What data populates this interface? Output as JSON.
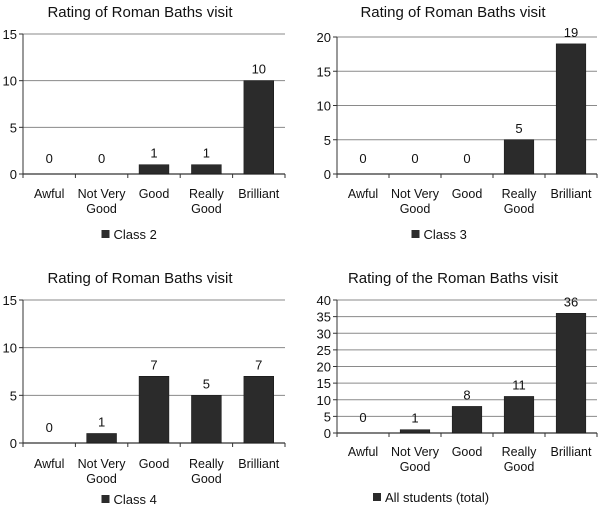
{
  "colors": {
    "bar": "#2b2b2b",
    "grid": "#8a8a8a",
    "axis": "#333333"
  },
  "chart_data": [
    {
      "type": "bar",
      "title": "Rating of Roman Baths visit",
      "categories": [
        "Awful",
        "Not Very Good",
        "Good",
        "Really Good",
        "Brilliant"
      ],
      "category_lines": [
        [
          "Awful"
        ],
        [
          "Not Very",
          "Good"
        ],
        [
          "Good"
        ],
        [
          "Really",
          "Good"
        ],
        [
          "Brilliant"
        ]
      ],
      "series": [
        {
          "name": "Class 2",
          "values": [
            0,
            0,
            1,
            1,
            10
          ]
        }
      ],
      "ylim": [
        0,
        15
      ],
      "yticks": [
        0,
        5,
        10,
        15
      ],
      "grid": true,
      "legend": "bottom",
      "xlabel": "",
      "ylabel": ""
    },
    {
      "type": "bar",
      "title": "Rating of Roman Baths visit",
      "categories": [
        "Awful",
        "Not Very Good",
        "Good",
        "Really Good",
        "Brilliant"
      ],
      "category_lines": [
        [
          "Awful"
        ],
        [
          "Not Very",
          "Good"
        ],
        [
          "Good"
        ],
        [
          "Really",
          "Good"
        ],
        [
          "Brilliant"
        ]
      ],
      "series": [
        {
          "name": "Class 3",
          "values": [
            0,
            0,
            0,
            5,
            19
          ]
        }
      ],
      "ylim": [
        0,
        20
      ],
      "yticks": [
        0,
        5,
        10,
        15,
        20
      ],
      "grid": true,
      "legend": "bottom",
      "xlabel": "",
      "ylabel": ""
    },
    {
      "type": "bar",
      "title": "Rating of Roman Baths visit",
      "categories": [
        "Awful",
        "Not Very Good",
        "Good",
        "Really Good",
        "Brilliant"
      ],
      "category_lines": [
        [
          "Awful"
        ],
        [
          "Not Very",
          "Good"
        ],
        [
          "Good"
        ],
        [
          "Really",
          "Good"
        ],
        [
          "Brilliant"
        ]
      ],
      "series": [
        {
          "name": "Class 4",
          "values": [
            0,
            1,
            7,
            5,
            7
          ]
        }
      ],
      "ylim": [
        0,
        15
      ],
      "yticks": [
        0,
        5,
        10,
        15
      ],
      "grid": true,
      "legend": "bottom",
      "xlabel": "",
      "ylabel": ""
    },
    {
      "type": "bar",
      "title": "Rating of the Roman Baths visit",
      "categories": [
        "Awful",
        "Not Very Good",
        "Good",
        "Really Good",
        "Brilliant"
      ],
      "category_lines": [
        [
          "Awful"
        ],
        [
          "Not Very",
          "Good"
        ],
        [
          "Good"
        ],
        [
          "Really",
          "Good"
        ],
        [
          "Brilliant"
        ]
      ],
      "series": [
        {
          "name": "All students (total)",
          "values": [
            0,
            1,
            8,
            11,
            36
          ]
        }
      ],
      "ylim": [
        0,
        40
      ],
      "yticks": [
        0,
        5,
        10,
        15,
        20,
        25,
        30,
        35,
        40
      ],
      "grid": true,
      "legend": "bottom",
      "xlabel": "",
      "ylabel": ""
    }
  ]
}
